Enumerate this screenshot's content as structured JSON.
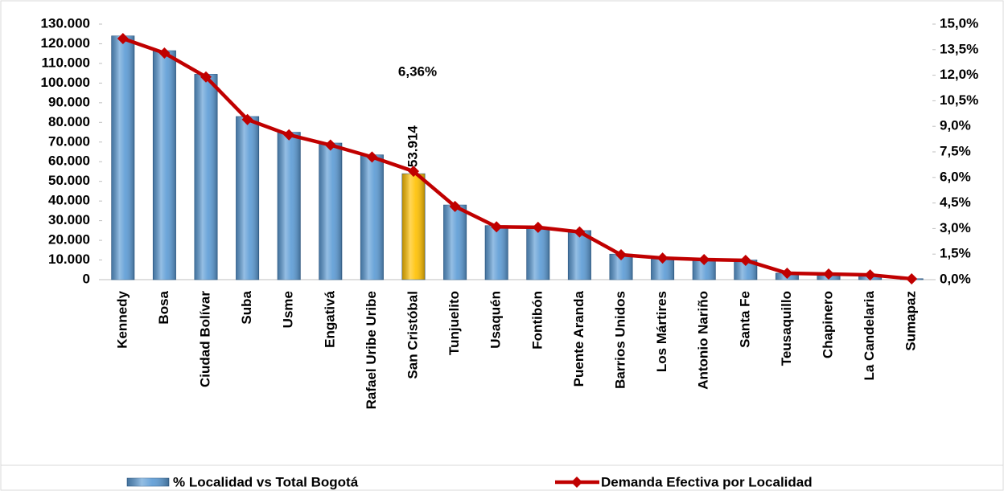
{
  "chart_data": {
    "type": "bar-line",
    "categories": [
      "Kennedy",
      "Bosa",
      "Ciudad Bolívar",
      "Suba",
      "Usme",
      "Engativá",
      "Rafael Uribe Uribe",
      "San Cristóbal",
      "Tunjuelito",
      "Usaquén",
      "Fontibón",
      "Puente Aranda",
      "Barrios Unidos",
      "Los Mártires",
      "Antonio Nariño",
      "Santa Fe",
      "Teusaquillo",
      "Chapinero",
      "La Candelaria",
      "Sumapaz"
    ],
    "series": [
      {
        "name": "% Localidad vs Total Bogotá",
        "type": "bar",
        "color": "#5b9bd5",
        "colors": [
          "#5b9bd5",
          "#5b9bd5",
          "#5b9bd5",
          "#5b9bd5",
          "#5b9bd5",
          "#5b9bd5",
          "#5b9bd5",
          "#ffc000",
          "#5b9bd5",
          "#5b9bd5",
          "#5b9bd5",
          "#5b9bd5",
          "#5b9bd5",
          "#5b9bd5",
          "#5b9bd5",
          "#5b9bd5",
          "#5b9bd5",
          "#5b9bd5",
          "#5b9bd5",
          "#5b9bd5"
        ],
        "values": [
          124000,
          116500,
          104500,
          83000,
          75000,
          69500,
          63500,
          53914,
          38000,
          27500,
          26500,
          25000,
          13000,
          11000,
          10000,
          10000,
          3300,
          2900,
          2500,
          500
        ],
        "value_labels": [
          null,
          null,
          null,
          null,
          null,
          null,
          null,
          "53.914",
          null,
          null,
          null,
          null,
          null,
          null,
          null,
          null,
          null,
          null,
          null,
          null
        ]
      },
      {
        "name": "Demanda Efectiva por Localidad",
        "type": "line",
        "axis": "y2",
        "color": "#c00000",
        "values": [
          14.15,
          13.3,
          11.9,
          9.4,
          8.5,
          7.9,
          7.2,
          6.36,
          4.3,
          3.1,
          3.07,
          2.8,
          1.46,
          1.27,
          1.18,
          1.13,
          0.38,
          0.33,
          0.28,
          0.05
        ],
        "value_labels": [
          null,
          null,
          null,
          null,
          null,
          null,
          null,
          "6,36%",
          null,
          null,
          null,
          null,
          null,
          null,
          null,
          null,
          null,
          null,
          null,
          null
        ]
      }
    ],
    "ylim": [
      0,
      130000
    ],
    "yticks": [
      0,
      {
        "value": 10000,
        "label": "10.000"
      },
      {
        "value": 20000,
        "label": "20.000"
      },
      {
        "value": 30000,
        "label": "30.000"
      },
      {
        "value": 40000,
        "label": "40.000"
      },
      {
        "value": 50000,
        "label": "50.000"
      },
      {
        "value": 60000,
        "label": "60.000"
      },
      {
        "value": 70000,
        "label": "70.000"
      },
      {
        "value": 80000,
        "label": "80.000"
      },
      {
        "value": 90000,
        "label": "90.000"
      },
      {
        "value": 100000,
        "label": "100.000"
      },
      {
        "value": 110000,
        "label": "110.000"
      },
      {
        "value": 120000,
        "label": "120.000"
      },
      {
        "value": 130000,
        "label": "130.000"
      }
    ],
    "y2lim": [
      0,
      15
    ],
    "y2ticks": [
      {
        "value": 0,
        "label": "0,0%"
      },
      {
        "value": 1.5,
        "label": "1,5%"
      },
      {
        "value": 3,
        "label": "3,0%"
      },
      {
        "value": 4.5,
        "label": "4,5%"
      },
      {
        "value": 6,
        "label": "6,0%"
      },
      {
        "value": 7.5,
        "label": "7,5%"
      },
      {
        "value": 9,
        "label": "9,0%"
      },
      {
        "value": 10.5,
        "label": "10,5%"
      },
      {
        "value": 12,
        "label": "12,0%"
      },
      {
        "value": 13.5,
        "label": "13,5%"
      },
      {
        "value": 15,
        "label": "15,0%"
      }
    ],
    "legend": "bottom",
    "grid": false
  }
}
